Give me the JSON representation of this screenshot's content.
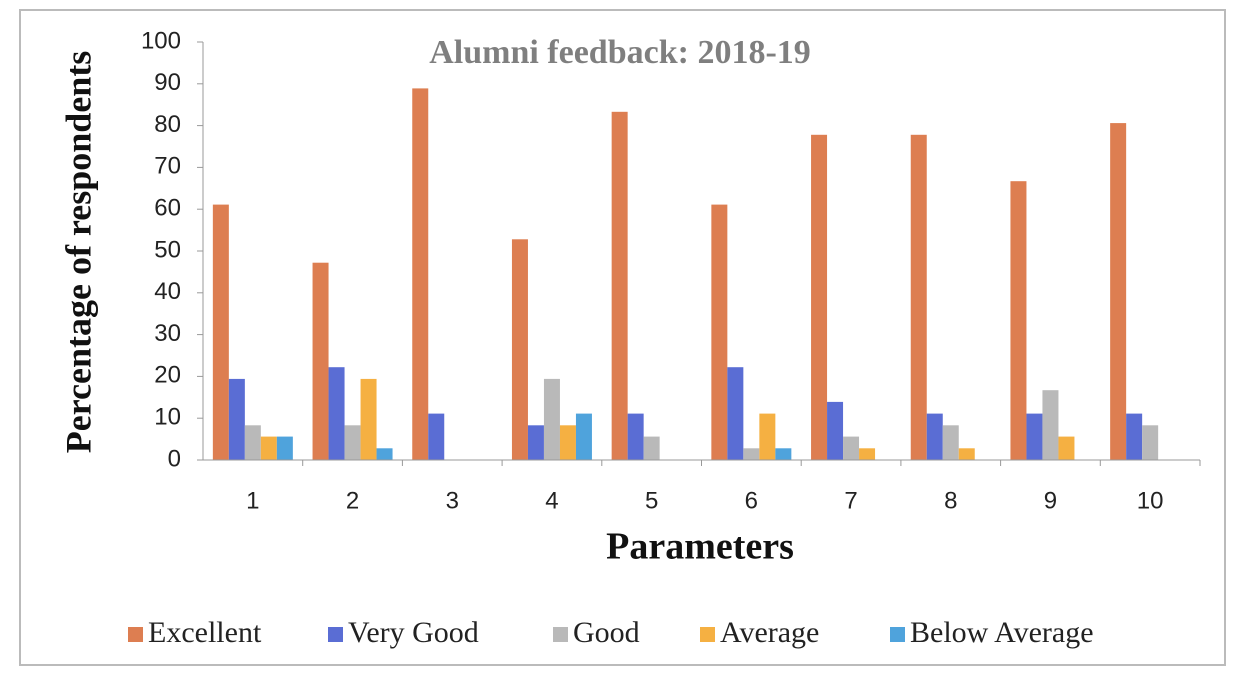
{
  "chart_data": {
    "type": "bar",
    "title": "Alumni feedback: 2018-19",
    "x_label": "Parameters",
    "y_label": "Percentage of respondents",
    "categories": [
      "1",
      "2",
      "3",
      "4",
      "5",
      "6",
      "7",
      "8",
      "9",
      "10"
    ],
    "series": [
      {
        "name": "Excellent",
        "color": "#dd7e51",
        "values": [
          61.1,
          47.2,
          88.9,
          52.8,
          83.3,
          61.1,
          77.8,
          77.8,
          66.7,
          80.6
        ]
      },
      {
        "name": "Very Good",
        "color": "#5a6dd4",
        "values": [
          19.4,
          22.2,
          11.1,
          8.3,
          11.1,
          22.2,
          13.9,
          11.1,
          11.1,
          11.1
        ]
      },
      {
        "name": "Good",
        "color": "#b9b9b9",
        "values": [
          8.3,
          8.3,
          0,
          19.4,
          5.6,
          2.8,
          5.6,
          8.3,
          16.7,
          8.3
        ]
      },
      {
        "name": "Average",
        "color": "#f5b042",
        "values": [
          5.6,
          19.4,
          0,
          8.3,
          0,
          11.1,
          2.8,
          2.8,
          5.6,
          0
        ]
      },
      {
        "name": "Below Average",
        "color": "#4fa3dc",
        "values": [
          5.6,
          2.8,
          0,
          11.1,
          0,
          2.8,
          0,
          0,
          0,
          0
        ]
      }
    ],
    "ylim": [
      0,
      100
    ],
    "yticks": [
      0,
      10,
      20,
      30,
      40,
      50,
      60,
      70,
      80,
      90,
      100
    ],
    "grid": false,
    "legend": "bottom"
  }
}
